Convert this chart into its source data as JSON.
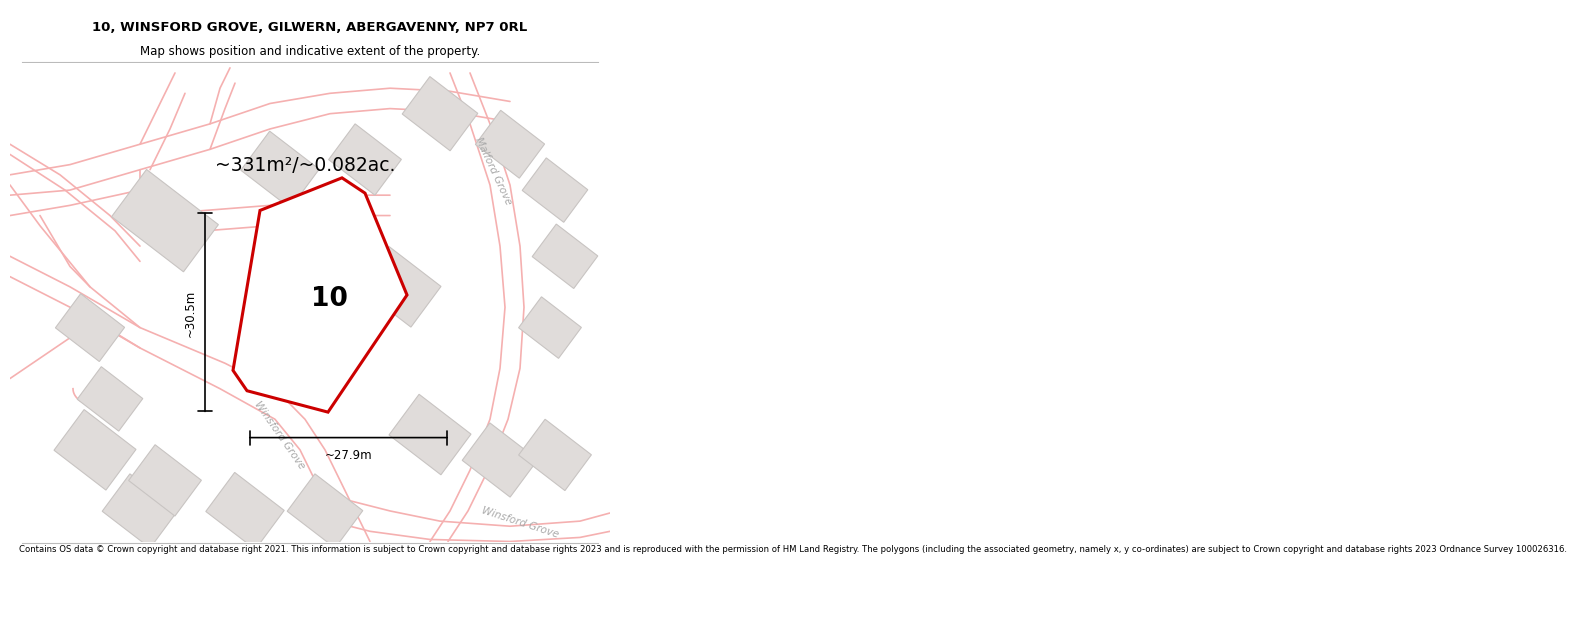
{
  "title_line1": "10, WINSFORD GROVE, GILWERN, ABERGAVENNY, NP7 0RL",
  "title_line2": "Map shows position and indicative extent of the property.",
  "area_label": "~331m²/~0.082ac.",
  "plot_number": "10",
  "dim_height": "~30.5m",
  "dim_width": "~27.9m",
  "footer_text": "Contains OS data © Crown copyright and database right 2021. This information is subject to Crown copyright and database rights 2023 and is reproduced with the permission of HM Land Registry. The polygons (including the associated geometry, namely x, y co-ordinates) are subject to Crown copyright and database rights 2023 Ordnance Survey 100026316.",
  "bg_color": "#ffffff",
  "road_color": "#f5b0b0",
  "building_color": "#e0dcda",
  "building_edge": "#c8c4c2",
  "plot_color": "#cc0000",
  "road_label_color": "#aaaaaa",
  "road_label_malford": "Malford Grove",
  "road_label_winsford_mid": "Winsford Grove",
  "road_label_winsford_bot": "Winsford Grove"
}
